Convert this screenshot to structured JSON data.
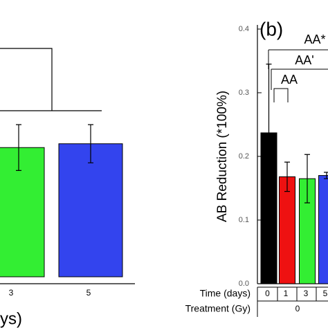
{
  "charts": [
    {
      "type": "bar",
      "categories": [
        "3",
        "5"
      ],
      "values": [
        0.203,
        0.209
      ],
      "yerr": [
        0.036,
        0.03
      ],
      "colors": [
        "#33ee33",
        "#3344ee"
      ],
      "axis_text": "ys)"
    },
    {
      "type": "bar",
      "panel_label": "(b)",
      "y_label": "AB Reduction (*100%)",
      "categories": [
        "0",
        "1",
        "3",
        "5"
      ],
      "values": [
        0.237,
        0.168,
        0.165,
        0.17
      ],
      "yerr": [
        0.108,
        0.023,
        0.038,
        0.005
      ],
      "colors": [
        "#000000",
        "#ee1111",
        "#33ee33",
        "#3344ee"
      ],
      "ylim": [
        0,
        0.4
      ],
      "yticks": [
        {
          "value": 0,
          "label": "0.0"
        },
        0.1,
        0.2,
        0.3,
        0.4
      ],
      "annotations": [
        "AA",
        "AA'",
        "AA*"
      ],
      "row_labels": [
        "Time (days)",
        "Treatment (Gy)"
      ],
      "treatment": "0"
    }
  ]
}
